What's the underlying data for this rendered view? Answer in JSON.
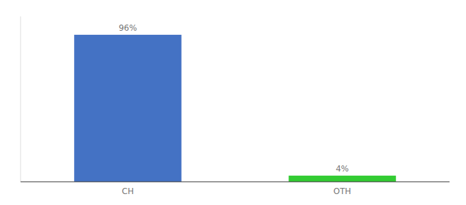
{
  "chart_data": {
    "type": "bar",
    "categories": [
      "CH",
      "OTH"
    ],
    "values": [
      96,
      4
    ],
    "value_labels": [
      "96%",
      "4%"
    ],
    "colors": [
      "#4472c4",
      "#33cc33"
    ],
    "ylim": [
      0,
      108
    ],
    "data_labels": true,
    "tick_labels": "x",
    "grid": false
  }
}
